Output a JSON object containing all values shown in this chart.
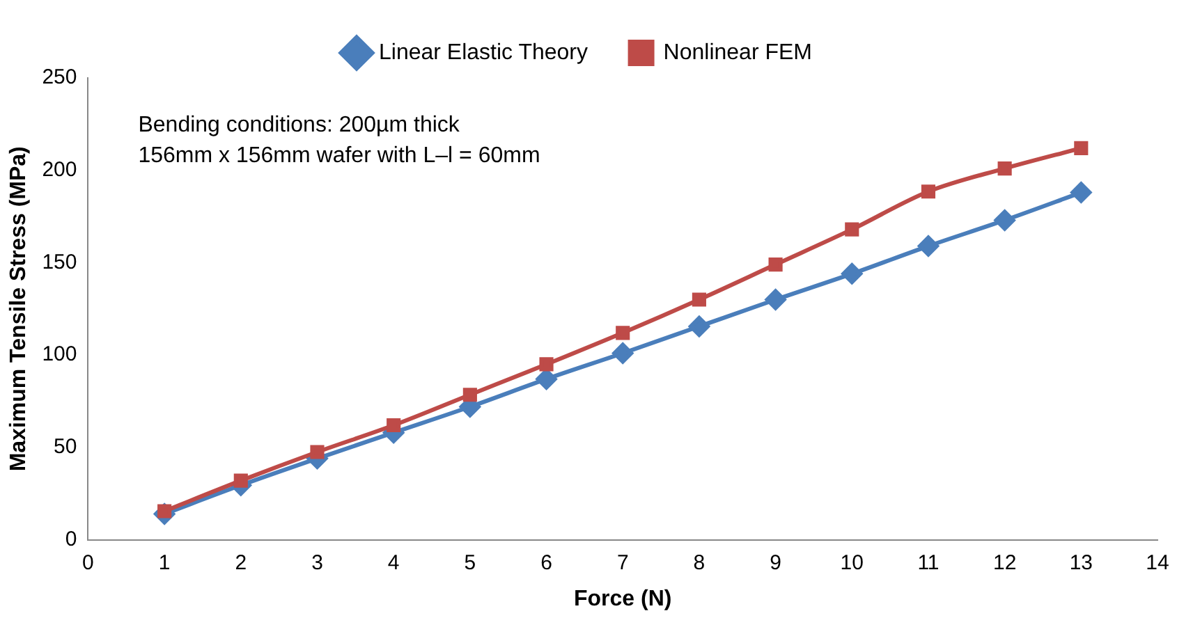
{
  "chart_data": {
    "type": "line",
    "xlabel": "Force (N)",
    "ylabel": "Maximum Tensile Stress (MPa)",
    "x": [
      1,
      2,
      3,
      4,
      5,
      6,
      7,
      8,
      9,
      10,
      11,
      12,
      13
    ],
    "series": [
      {
        "name": "Linear Elastic Theory",
        "color": "#4a7ebb",
        "marker": "diamond",
        "values": [
          14,
          29.5,
          44,
          58,
          72,
          87,
          101,
          115.5,
          130,
          144,
          159,
          173,
          188
        ]
      },
      {
        "name": "Nonlinear FEM",
        "color": "#be4b48",
        "marker": "square",
        "values": [
          15.5,
          32,
          47.5,
          62,
          78.5,
          95,
          112,
          130,
          149,
          168,
          188.5,
          201,
          212
        ]
      }
    ],
    "xlim": [
      0,
      14
    ],
    "xticks": [
      0,
      1,
      2,
      3,
      4,
      5,
      6,
      7,
      8,
      9,
      10,
      11,
      12,
      13,
      14
    ],
    "ylim": [
      0,
      250
    ],
    "yticks": [
      0,
      50,
      100,
      150,
      200,
      250
    ],
    "grid": false,
    "legend": "top",
    "line_style": "solid",
    "annotations": [
      "Bending conditions: 200µm thick",
      "156mm x 156mm wafer with L–l = 60mm"
    ]
  }
}
